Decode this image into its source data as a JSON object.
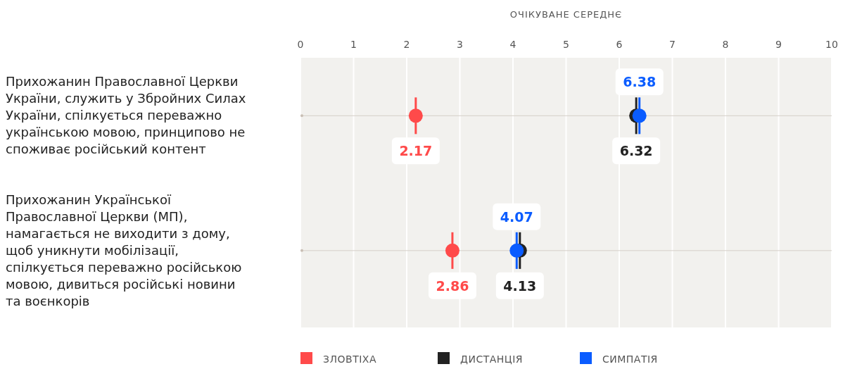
{
  "chart_data": {
    "type": "scatter",
    "orientation": "horizontal",
    "xlabel": "ОЧІКУВАНЕ СЕРЕДНЄ",
    "categories": [
      "Прихожанин Православної Церкви України, служить у Збройних Силах України, спілкується переважно українською мовою, принципово не споживає російський контент",
      "Прихожанин Української Православної Церкви (МП), намагається не виходити з дому, щоб уникнути мобілізації, спілкується переважно російською мовою, дивиться російські новини та воєнкорів"
    ],
    "series": [
      {
        "name": "ЗЛОВТІХА",
        "color": "#ff4a4a",
        "values": [
          2.17,
          2.86
        ]
      },
      {
        "name": "ДИСТАНЦІЯ",
        "color": "#222222",
        "values": [
          6.32,
          4.13
        ]
      },
      {
        "name": "СИМПАТІЯ",
        "color": "#0a5cff",
        "values": [
          6.38,
          4.07
        ]
      }
    ],
    "xlim": [
      0,
      10
    ],
    "xticks": [
      0,
      1,
      2,
      3,
      4,
      5,
      6,
      7,
      8,
      9,
      10
    ],
    "grid": true,
    "legend": "bottom",
    "data_labels": true,
    "marker": "circle"
  }
}
